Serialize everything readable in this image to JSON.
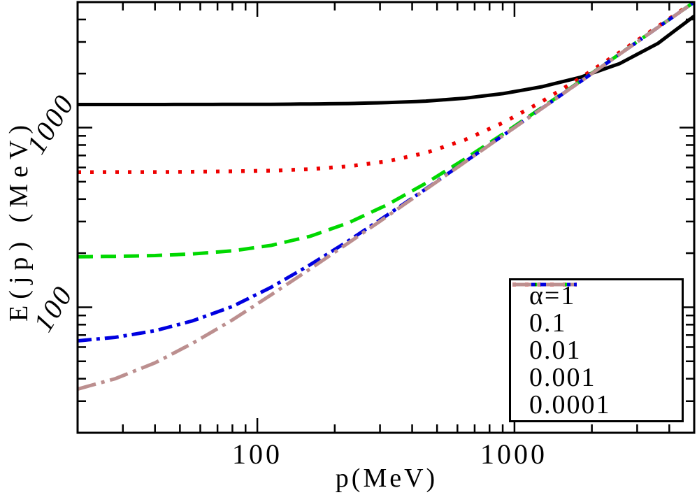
{
  "figure": {
    "xlabel": "p(MeV)",
    "ylabel": "E(jp) (MeV)",
    "x_tick_labels": [
      "100",
      "1000"
    ],
    "y_tick_labels": [
      "100",
      "1000"
    ]
  },
  "chart_data": {
    "type": "line",
    "title": "",
    "xlabel": "p(MeV)",
    "ylabel": "E(jp) (MeV)",
    "xscale": "log",
    "yscale": "log",
    "xlim": [
      20,
      5000
    ],
    "ylim": [
      20,
      5000
    ],
    "grid": false,
    "legend_position": "lower right",
    "frame_color": "#000000",
    "x_major_ticks": [
      100,
      1000
    ],
    "y_major_ticks": [
      100,
      1000
    ],
    "series": [
      {
        "name": "α=1",
        "color": "#000000",
        "style": "solid",
        "x": [
          20,
          28,
          40,
          56,
          80,
          113,
          160,
          226,
          320,
          452,
          640,
          905,
          1280,
          1810,
          2560,
          3620,
          5000
        ],
        "y": [
          1345,
          1345,
          1345,
          1346,
          1347,
          1349,
          1354,
          1362,
          1378,
          1405,
          1458,
          1548,
          1690,
          1910,
          2270,
          2950,
          4180
        ]
      },
      {
        "name": "0.1",
        "color": "#EE0000",
        "style": "dotted",
        "x": [
          20,
          28,
          40,
          56,
          80,
          113,
          160,
          226,
          320,
          452,
          640,
          905,
          1280,
          1810,
          2560,
          3620,
          5000
        ],
        "y": [
          565,
          566,
          566,
          568,
          571,
          576,
          587,
          609,
          649,
          724,
          854,
          1067,
          1399,
          1896,
          2622,
          3664,
          5032
        ]
      },
      {
        "name": "0.01",
        "color": "#00D800",
        "style": "dashed",
        "x": [
          20,
          28,
          40,
          56,
          80,
          113,
          160,
          226,
          320,
          452,
          640,
          905,
          1280,
          1810,
          2560,
          3620,
          5000
        ],
        "y": [
          191,
          192,
          194,
          198,
          206,
          221,
          248,
          295,
          372,
          490,
          668,
          925,
          1294,
          1820,
          2567,
          3625,
          5004
        ]
      },
      {
        "name": "0.001",
        "color": "#0000E0",
        "style": "dashdot",
        "x": [
          20,
          28,
          40,
          56,
          80,
          113,
          160,
          226,
          320,
          452,
          640,
          905,
          1280,
          1810,
          2560,
          3620,
          5000
        ],
        "y": [
          65,
          68,
          74,
          84,
          101,
          129,
          172,
          234,
          326,
          456,
          643,
          907,
          1282,
          1811,
          2561,
          3621,
          5000
        ]
      },
      {
        "name": "0.0001",
        "color": "#BC8F8F",
        "style": "dashdotlong",
        "x": [
          20,
          28,
          40,
          56,
          80,
          113,
          160,
          226,
          320,
          452,
          640,
          905,
          1280,
          1810,
          2560,
          3620,
          5000
        ],
        "y": [
          35,
          40,
          49,
          63,
          85,
          117,
          163,
          228,
          321,
          453,
          641,
          906,
          1280,
          1810,
          2560,
          3620,
          5000
        ]
      }
    ]
  }
}
